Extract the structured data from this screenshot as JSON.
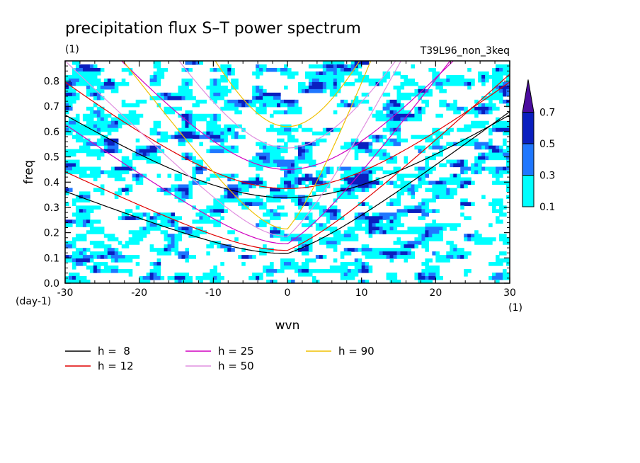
{
  "chart_data": {
    "type": "heatmap",
    "title": "precipitation flux S–T power spectrum",
    "subtitle_left": "(1)",
    "subtitle_right": "T39L96_non_3keq",
    "xlabel": "wvn",
    "ylabel": "freq",
    "x_unit": "(1)",
    "y_unit": "(day-1)",
    "xlim": [
      -30,
      30
    ],
    "ylim": [
      0,
      0.88
    ],
    "x_ticks": [
      "-30",
      "-20",
      "-10",
      "0",
      "10",
      "20",
      "30"
    ],
    "x_tick_values": [
      -30,
      -20,
      -10,
      0,
      10,
      20,
      30
    ],
    "y_ticks": [
      "0.0",
      "0.1",
      "0.2",
      "0.3",
      "0.4",
      "0.5",
      "0.6",
      "0.7",
      "0.8"
    ],
    "y_tick_values": [
      0,
      0.1,
      0.2,
      0.3,
      0.4,
      0.5,
      0.6,
      0.7,
      0.8
    ],
    "colorbar": {
      "levels": [
        "0.1",
        "0.3",
        "0.5",
        "0.7"
      ],
      "level_values": [
        0.1,
        0.3,
        0.5,
        0.7
      ],
      "colors": [
        "#00ffff",
        "#1f77ff",
        "#0a1fbf",
        "#4b0c9e"
      ]
    },
    "series": [
      {
        "name": "h =  8",
        "h": 8,
        "color": "#000000"
      },
      {
        "name": "h = 12",
        "h": 12,
        "color": "#e00000"
      },
      {
        "name": "h = 25",
        "h": 25,
        "color": "#d000c0"
      },
      {
        "name": "h = 50",
        "h": 50,
        "color": "#e090e0"
      },
      {
        "name": "h = 90",
        "h": 90,
        "color": "#f0c000"
      }
    ]
  }
}
